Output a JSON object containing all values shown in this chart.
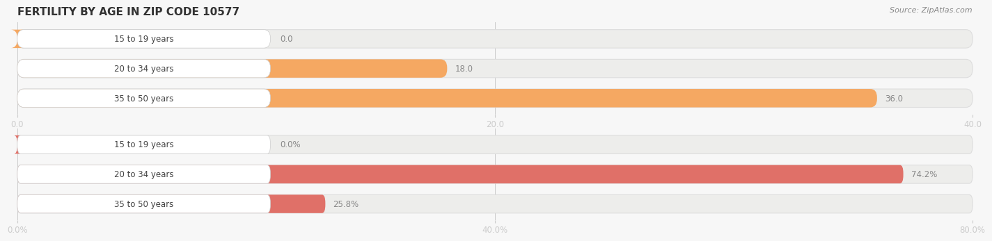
{
  "title": "FERTILITY BY AGE IN ZIP CODE 10577",
  "source": "Source: ZipAtlas.com",
  "top_chart": {
    "categories": [
      "15 to 19 years",
      "20 to 34 years",
      "35 to 50 years"
    ],
    "values": [
      0.0,
      18.0,
      36.0
    ],
    "xlim": [
      0,
      40
    ],
    "xticks": [
      0.0,
      20.0,
      40.0
    ],
    "bar_color": "#F5A862",
    "bar_bg_color": "#EDEDEB",
    "label_bg_color": "#FFFFFF"
  },
  "bottom_chart": {
    "categories": [
      "15 to 19 years",
      "20 to 34 years",
      "35 to 50 years"
    ],
    "values": [
      0.0,
      74.2,
      25.8
    ],
    "xlim": [
      0,
      80
    ],
    "xticks": [
      0.0,
      40.0,
      80.0
    ],
    "bar_color": "#E07068",
    "bar_bg_color": "#EDEDEB",
    "label_bg_color": "#FFFFFF"
  },
  "bg_color": "#F7F7F7",
  "title_fontsize": 11,
  "source_fontsize": 8,
  "label_fontsize": 8.5,
  "value_fontsize": 8.5,
  "tick_fontsize": 8.5
}
